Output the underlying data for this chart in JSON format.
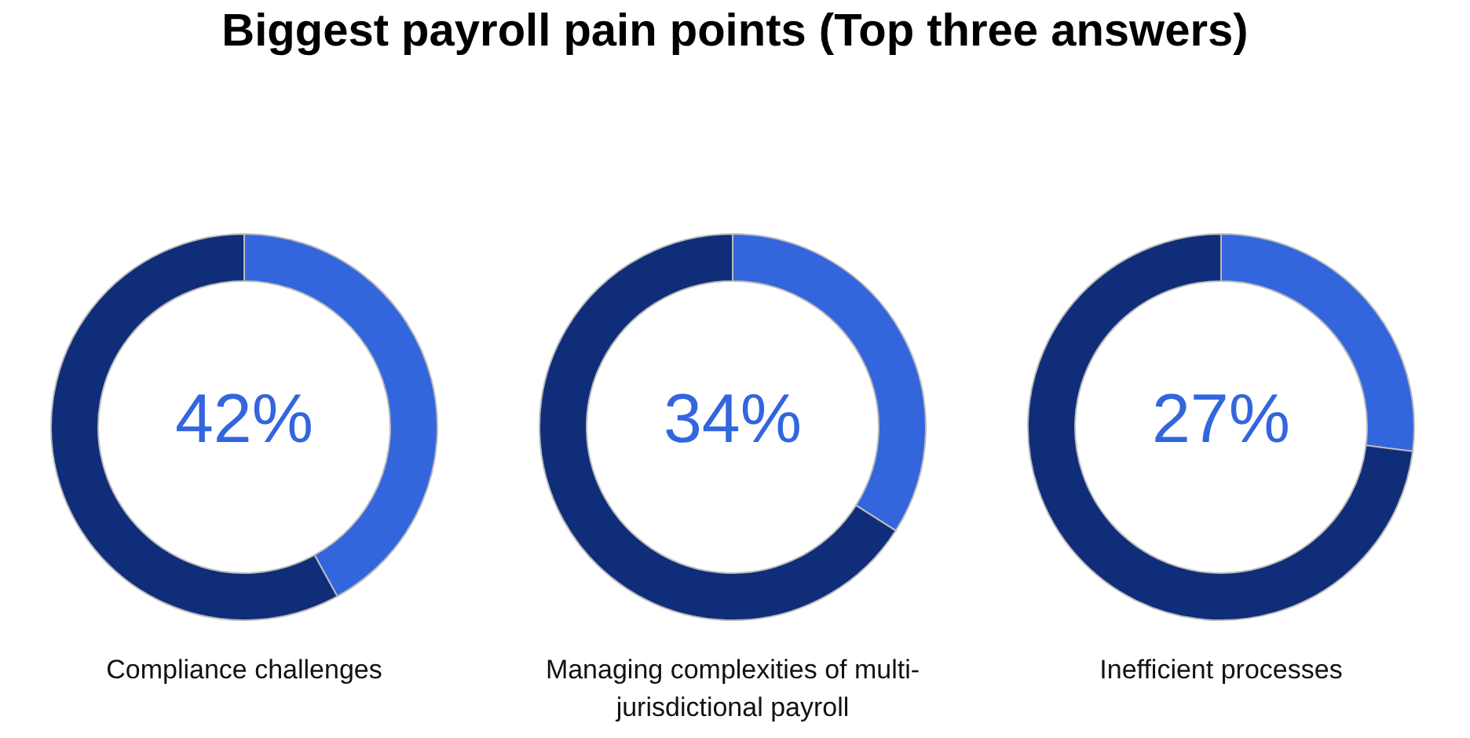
{
  "chart_data": [
    {
      "type": "donut",
      "title": "Biggest payroll pain points (Top three answers)",
      "categories": [
        null,
        null
      ],
      "values": [
        42,
        58
      ],
      "colors": [
        "#3366dd",
        "#0f2d78"
      ],
      "annotations": [
        "42%"
      ],
      "xlabel": "Compliance challenges"
    },
    {
      "type": "donut",
      "categories": [
        null,
        null
      ],
      "values": [
        34,
        66
      ],
      "colors": [
        "#3366dd",
        "#0f2d78"
      ],
      "annotations": [
        "34%"
      ],
      "xlabel": "Managing complexities of multi-jurisdictional payroll"
    },
    {
      "type": "donut",
      "categories": [
        null,
        null
      ],
      "values": [
        27,
        73
      ],
      "colors": [
        "#3366dd",
        "#0f2d78"
      ],
      "annotations": [
        "27%"
      ],
      "xlabel": "Inefficient processes"
    }
  ]
}
